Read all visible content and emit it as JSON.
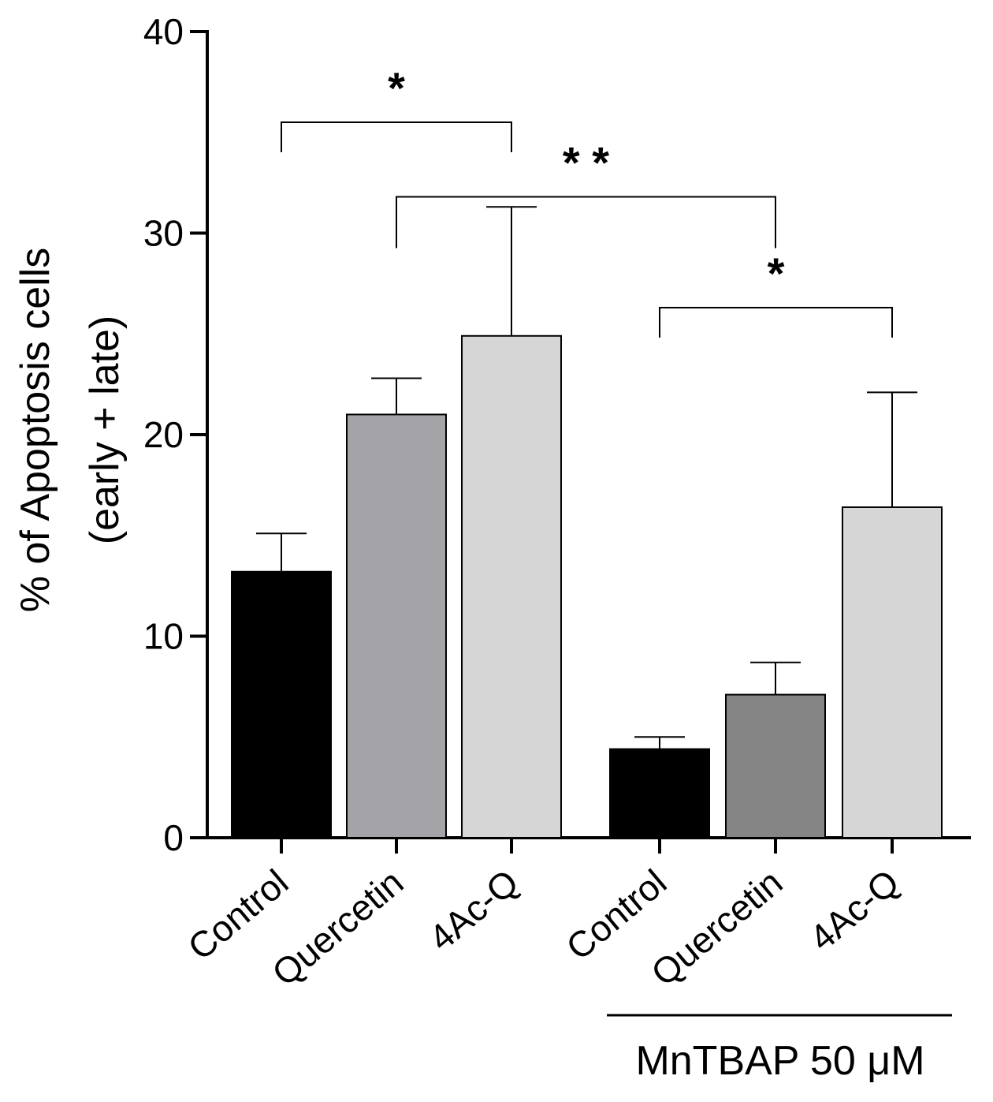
{
  "chart_data": {
    "type": "bar",
    "title": "",
    "xlabel": "",
    "ylabel_line1": "% of Apoptosis cells",
    "ylabel_line2": "(early + late)",
    "ylim": [
      0,
      40
    ],
    "yticks": [
      0,
      10,
      20,
      30,
      40
    ],
    "categories": [
      "Control",
      "Quercetin",
      "4Ac-Q",
      "Control",
      "Quercetin",
      "4Ac-Q"
    ],
    "values": [
      13.2,
      21.0,
      24.9,
      4.4,
      7.1,
      16.4
    ],
    "errors": [
      1.9,
      1.8,
      6.4,
      0.6,
      1.6,
      5.7
    ],
    "colors": [
      "#000000",
      "#a4a3a8",
      "#d6d6d6",
      "#000000",
      "#858585",
      "#d6d6d6"
    ],
    "group_label": "MnTBAP 50 μM",
    "group_members": [
      3,
      4,
      5
    ],
    "significance": [
      {
        "from": 0,
        "to": 2,
        "label": "*",
        "level": 35.5
      },
      {
        "from": 1,
        "to": 4,
        "label": "* *",
        "level": 31.8
      },
      {
        "from": 3,
        "to": 5,
        "label": "*",
        "level": 26.3
      }
    ]
  }
}
